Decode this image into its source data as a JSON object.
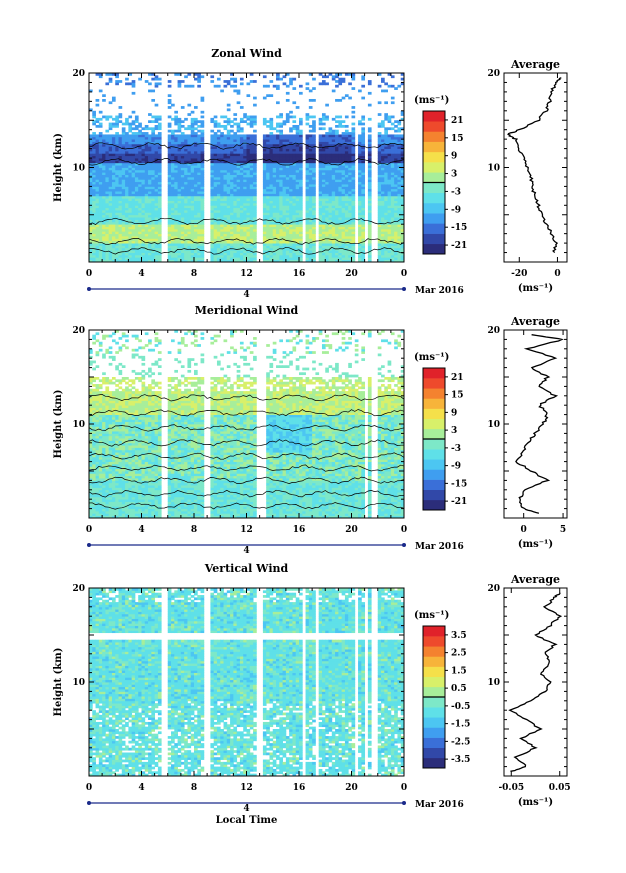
{
  "colors": {
    "colormap": [
      "#2b2d7a",
      "#3148a8",
      "#3a6fd8",
      "#3f9ef0",
      "#4cc6f2",
      "#5fe0e8",
      "#7de8c8",
      "#a7ee9a",
      "#d8f06a",
      "#f5e04a",
      "#f7b43a",
      "#f4822f",
      "#ee4a2c",
      "#e0222a"
    ]
  },
  "chart_data": [
    {
      "type": "heatmap",
      "title": "Zonal Wind",
      "ylabel": "Height (km)",
      "ylim": [
        0,
        20
      ],
      "yticks": [
        "10",
        "20"
      ],
      "xlim": [
        0,
        24
      ],
      "xticks": [
        "0",
        "4",
        "8",
        "12",
        "16",
        "20",
        "0"
      ],
      "date_tick": "4",
      "date_label": "Mar 2016",
      "colorbar": {
        "unit": "(ms⁻¹)",
        "range": [
          -24,
          24
        ],
        "ticks": [
          "21",
          "15",
          "9",
          "3",
          "-3",
          "-9",
          "-15",
          "-21"
        ]
      },
      "missing_hours": [
        5.8,
        9.0,
        13.0,
        16.4,
        17.4,
        20.4,
        21.1,
        21.8
      ],
      "average_profile": {
        "title": "Average",
        "xlabel": "(ms⁻¹)",
        "xticks": [
          "-20",
          "0"
        ],
        "xlim": [
          -28,
          5
        ],
        "yticks": [
          "10",
          "20"
        ],
        "height_km": [
          1,
          2,
          3,
          4,
          5,
          6,
          7,
          8,
          9,
          10,
          11,
          12,
          13,
          13.5,
          14,
          15,
          16,
          17,
          18,
          19,
          19.5
        ],
        "values": [
          -2,
          -1,
          -3,
          -6,
          -8,
          -10,
          -12,
          -13,
          -14,
          -16,
          -18,
          -20,
          -22,
          -26,
          -20,
          -10,
          -6,
          -4,
          -3,
          -1,
          2
        ]
      }
    },
    {
      "type": "heatmap",
      "title": "Meridional Wind",
      "ylabel": "Height (km)",
      "ylim": [
        0,
        20
      ],
      "yticks": [
        "10",
        "20"
      ],
      "xlim": [
        0,
        24
      ],
      "xticks": [
        "0",
        "4",
        "8",
        "12",
        "16",
        "20",
        "0"
      ],
      "date_tick": "4",
      "date_label": "Mar 2016",
      "colorbar": {
        "unit": "(ms⁻¹)",
        "range": [
          -24,
          24
        ],
        "ticks": [
          "21",
          "15",
          "9",
          "3",
          "-3",
          "-9",
          "-15",
          "-21"
        ]
      },
      "missing_hours": [
        5.8,
        9.0,
        13.0,
        13.4,
        21.1,
        21.8
      ],
      "average_profile": {
        "title": "Average",
        "xlabel": "(ms⁻¹)",
        "xticks": [
          "0",
          "5"
        ],
        "xlim": [
          -2.5,
          5.5
        ],
        "yticks": [
          "10",
          "20"
        ],
        "height_km": [
          0.5,
          1,
          2,
          3,
          4,
          5,
          6,
          7,
          8,
          9,
          10,
          11,
          12,
          13,
          14,
          15,
          16,
          17,
          18,
          19,
          19.5
        ],
        "values": [
          2,
          0,
          -0.5,
          0,
          3,
          1,
          -1,
          0,
          0.5,
          1.5,
          2.5,
          3,
          2,
          4,
          2,
          3,
          1,
          4,
          0.5,
          5,
          1
        ]
      }
    },
    {
      "type": "heatmap",
      "title": "Vertical Wind",
      "ylabel": "Height (km)",
      "ylim": [
        0,
        20
      ],
      "yticks": [
        "10",
        "20"
      ],
      "xlim": [
        0,
        24
      ],
      "xticks": [
        "0",
        "4",
        "8",
        "12",
        "16",
        "20",
        "0"
      ],
      "date_tick": "4",
      "date_label": "Mar 2016",
      "xlabel": "Local Time",
      "colorbar": {
        "unit": "(ms⁻¹)",
        "range": [
          -4,
          4
        ],
        "ticks": [
          "3.5",
          "2.5",
          "1.5",
          "0.5",
          "-0.5",
          "-1.5",
          "-2.5",
          "-3.5"
        ]
      },
      "missing_hours": [
        5.8,
        9.0,
        13.0,
        16.4,
        17.4,
        20.4,
        21.1,
        21.8
      ],
      "average_profile": {
        "title": "Average",
        "xlabel": "(ms⁻¹)",
        "xticks": [
          "-0.05",
          "0.05"
        ],
        "xlim": [
          -0.065,
          0.065
        ],
        "yticks": [
          "10",
          "20"
        ],
        "height_km": [
          0.5,
          1,
          2,
          3,
          4,
          5,
          6,
          7,
          8,
          9,
          10,
          11,
          12,
          13,
          14,
          15,
          16,
          17,
          18,
          19,
          19.5
        ],
        "values": [
          -0.05,
          -0.02,
          -0.04,
          0.0,
          -0.03,
          0.01,
          -0.02,
          -0.05,
          -0.01,
          0.02,
          0.03,
          0.01,
          0.03,
          0.02,
          0.04,
          0.0,
          0.03,
          0.05,
          0.02,
          0.04,
          0.05
        ]
      }
    }
  ]
}
